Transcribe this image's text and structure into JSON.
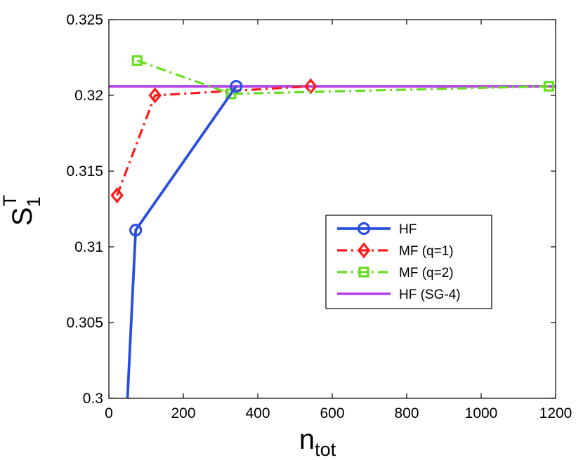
{
  "chart_data": {
    "type": "line",
    "title": "",
    "xlabel": {
      "main": "n",
      "sub": "tot"
    },
    "ylabel": {
      "main": "S",
      "sub": "1",
      "sup": "T"
    },
    "xlim": [
      0,
      1200
    ],
    "ylim": [
      0.3,
      0.325
    ],
    "xticks": [
      0,
      200,
      400,
      600,
      800,
      1000,
      1200
    ],
    "xtick_labels": [
      "0",
      "200",
      "400",
      "600",
      "800",
      "1000",
      "1200"
    ],
    "yticks": [
      0.3,
      0.305,
      0.31,
      0.315,
      0.32,
      0.325
    ],
    "ytick_labels": [
      "0.3",
      "0.305",
      "0.31",
      "0.315",
      "0.32",
      "0.325"
    ],
    "grid": false,
    "legend_position": "center-right",
    "series": [
      {
        "name": "HF",
        "color": "#2a4fe0",
        "dash": "solid",
        "marker": "circle",
        "x": [
          50,
          72,
          342
        ],
        "y": [
          0.3,
          0.3111,
          0.3206
        ],
        "marker_x": [
          72,
          342
        ],
        "marker_y": [
          0.3111,
          0.3206
        ]
      },
      {
        "name": "MF (q=1)",
        "color": "#ff1a1a",
        "dash": "dashdot",
        "marker": "diamond",
        "x": [
          22,
          124,
          542
        ],
        "y": [
          0.3134,
          0.32,
          0.3206
        ],
        "marker_x": [
          22,
          124,
          542
        ],
        "marker_y": [
          0.3134,
          0.32,
          0.3206
        ]
      },
      {
        "name": "MF (q=2)",
        "color": "#66dd22",
        "dash": "dashdot",
        "marker": "square",
        "x": [
          76,
          328,
          1182
        ],
        "y": [
          0.3223,
          0.3201,
          0.3206
        ],
        "marker_x": [
          76,
          328,
          1182
        ],
        "marker_y": [
          0.3223,
          0.3201,
          0.3206
        ]
      },
      {
        "name": "HF (SG-4)",
        "color": "#b646e6",
        "dash": "solid",
        "marker": "none",
        "x": [
          0,
          1200
        ],
        "y": [
          0.3206,
          0.3206
        ],
        "marker_x": [],
        "marker_y": []
      }
    ]
  }
}
